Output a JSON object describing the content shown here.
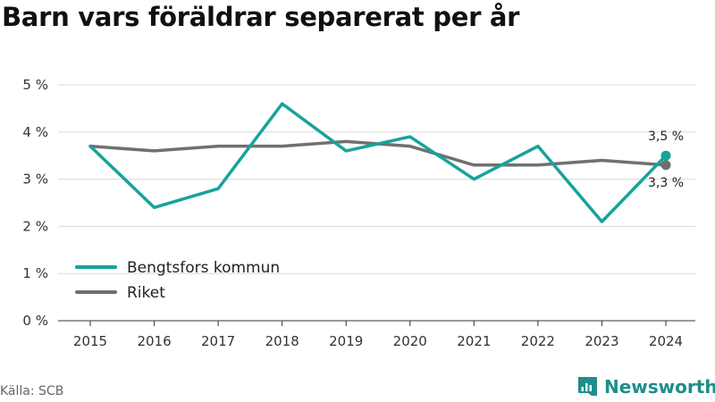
{
  "title": "Barn vars föräldrar separerat per år",
  "source": "Källa: SCB",
  "brand": "Newsworthy",
  "colors": {
    "series_1": "#17a39b",
    "series_2": "#707070",
    "grid": "#d9d9d9",
    "axis": "#333333",
    "brand": "#1f8e8a"
  },
  "icons": {
    "brand_logo": "newsworthy-logo-icon"
  },
  "chart_data": {
    "type": "line",
    "x": [
      "2015",
      "2016",
      "2017",
      "2018",
      "2019",
      "2020",
      "2021",
      "2022",
      "2023",
      "2024"
    ],
    "ylim": [
      0,
      5
    ],
    "yticks": [
      "0 %",
      "1 %",
      "2 %",
      "3 %",
      "4 %",
      "5 %"
    ],
    "grid": true,
    "legend": "bottom-left",
    "series": [
      {
        "name": "Bengtsfors kommun",
        "color": "#17a39b",
        "values": [
          3.7,
          2.4,
          2.8,
          4.6,
          3.6,
          3.9,
          3.0,
          3.7,
          2.1,
          3.5
        ],
        "end_label": "3,5 %"
      },
      {
        "name": "Riket",
        "color": "#707070",
        "values": [
          3.7,
          3.6,
          3.7,
          3.7,
          3.8,
          3.7,
          3.3,
          3.3,
          3.4,
          3.3
        ],
        "end_label": "3,3 %"
      }
    ]
  }
}
